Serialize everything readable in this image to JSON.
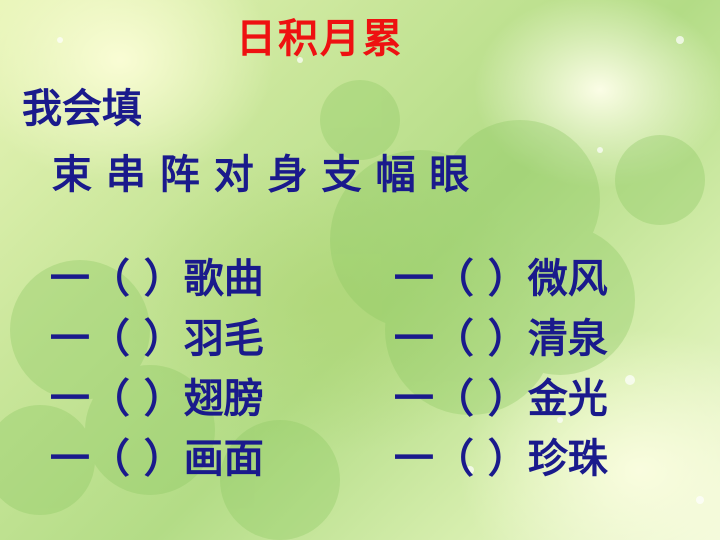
{
  "title": "日积月累",
  "subtitle": "我会填",
  "word_bank": " 束 串 阵 对 身 支 幅 眼",
  "left_rows": [
    {
      "prefix": "一（ ）",
      "noun": "歌曲"
    },
    {
      "prefix": "一（ ）",
      "noun": "羽毛"
    },
    {
      "prefix": "一（ ）",
      "noun": "翅膀"
    },
    {
      "prefix": "一（ ）",
      "noun": "画面"
    }
  ],
  "right_rows": [
    {
      "prefix": "一（ ）",
      "noun": "微风"
    },
    {
      "prefix": "一（ ）",
      "noun": "清泉"
    },
    {
      "prefix": "一（ ）",
      "noun": "金光"
    },
    {
      "prefix": "一（ ）",
      "noun": "珍珠"
    }
  ],
  "colors": {
    "title": "#ee1111",
    "text": "#1a1a8c",
    "background": "#c9e69a"
  },
  "background_image": "four-leaf-clover-bokeh"
}
